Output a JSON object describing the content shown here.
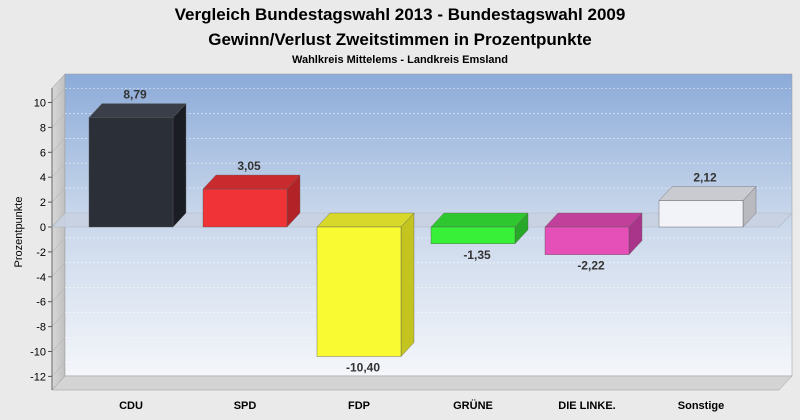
{
  "chart_data": {
    "type": "bar",
    "title": "Vergleich Bundestagswahl 2013 - Bundestagswahl 2009",
    "title2": "Gewinn/Verlust Zweitstimmen in Prozentpunkte",
    "subtitle": "Wahlkreis Mittelems - Landkreis Emsland",
    "xlabel": "",
    "ylabel": "Prozentpunkte",
    "ylim": [
      -13,
      11
    ],
    "yticks": [
      10,
      8,
      6,
      4,
      2,
      0,
      -2,
      -4,
      -6,
      -8,
      -10,
      -12
    ],
    "grid": true,
    "categories": [
      "CDU",
      "SPD",
      "FDP",
      "GRÜNE",
      "DIE LINKE.",
      "Sonstige"
    ],
    "values": [
      8.79,
      3.05,
      -10.4,
      -1.35,
      -2.22,
      2.12
    ],
    "value_labels": [
      "8,79",
      "3,05",
      "-10,40",
      "-1,35",
      "-2,22",
      "2,12"
    ],
    "colors": [
      "#2b2f38",
      "#f03337",
      "#fafa32",
      "#39f039",
      "#e44fb8",
      "#f1f3f8"
    ],
    "top_colors": [
      "#3a3e48",
      "#c92a2e",
      "#d8d82a",
      "#2fc72f",
      "#c0409a",
      "#c9cbd0"
    ],
    "side_colors": [
      "#1a1d24",
      "#b32226",
      "#c4c421",
      "#28a828",
      "#a8358a",
      "#b8babf"
    ]
  }
}
